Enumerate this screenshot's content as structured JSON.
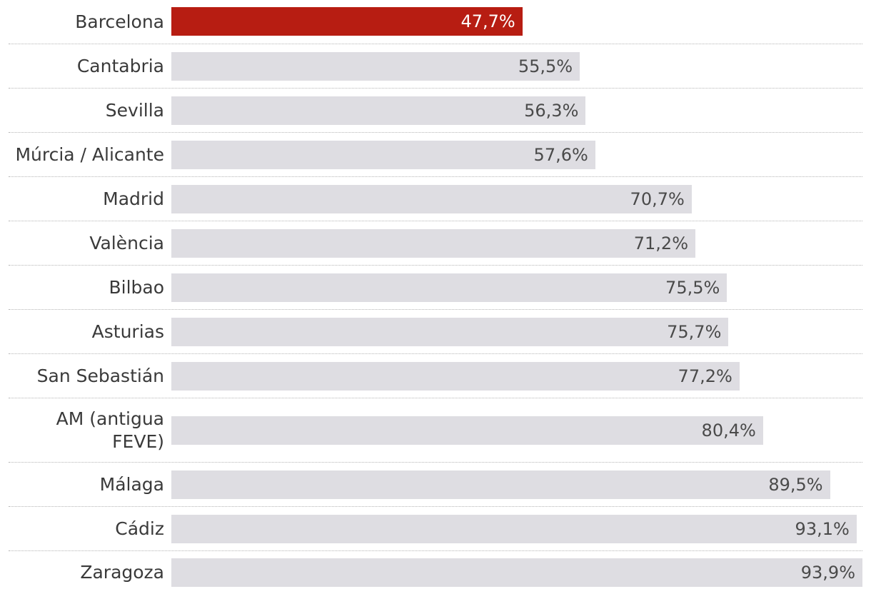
{
  "chart_data": {
    "type": "bar",
    "orientation": "horizontal",
    "categories": [
      "Barcelona",
      "Cantabria",
      "Sevilla",
      "Múrcia / Alicante",
      "Madrid",
      "València",
      "Bilbao",
      "Asturias",
      "San Sebastián",
      "AM (antigua FEVE)",
      "Málaga",
      "Cádiz",
      "Zaragoza"
    ],
    "values": [
      47.7,
      55.5,
      56.3,
      57.6,
      70.7,
      71.2,
      75.5,
      75.7,
      77.2,
      80.4,
      89.5,
      93.1,
      93.9
    ],
    "value_labels": [
      "47,7%",
      "55,5%",
      "56,3%",
      "57,6%",
      "70,7%",
      "71,2%",
      "75,5%",
      "75,7%",
      "77,2%",
      "80,4%",
      "89,5%",
      "93,1%",
      "93,9%"
    ],
    "highlight_index": 0,
    "colors": {
      "highlight": "#b71d12",
      "bar": "#dedde2"
    },
    "xlim": [
      0,
      93.9
    ],
    "grid": false
  }
}
